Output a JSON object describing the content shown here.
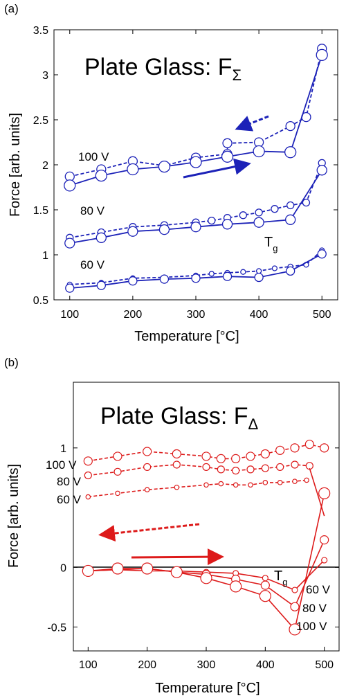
{
  "chart_data": [
    {
      "type": "line",
      "panel_label": "(a)",
      "title": "Plate Glass: F",
      "title_subscript": "Σ",
      "xlabel": "Temperature [°C]",
      "ylabel": "Force [arb. units]",
      "xlim": [
        75,
        525
      ],
      "ylim": [
        0.5,
        3.5
      ],
      "xticks": [
        "100",
        "200",
        "300",
        "400",
        "500"
      ],
      "yticks": [
        "0.5",
        "1",
        "1.5",
        "2",
        "2.5",
        "3",
        "3.5"
      ],
      "x": [
        100,
        150,
        200,
        250,
        300,
        350,
        400,
        450,
        500
      ],
      "color": "#1c22b8",
      "series": [
        {
          "name": "100 V",
          "heating": [
            1.77,
            1.88,
            1.95,
            1.98,
            2.03,
            2.09,
            2.15,
            2.14,
            3.22
          ],
          "cooling": [
            1.87,
            1.95,
            2.04,
            1.99,
            2.08,
            2.12,
            2.25,
            2.43,
            3.29
          ],
          "cooling_extra_x": [
            350,
            475
          ],
          "cooling_extra_y": [
            2.24,
            2.53
          ]
        },
        {
          "name": "80 V",
          "heating": [
            1.13,
            1.19,
            1.26,
            1.28,
            1.31,
            1.34,
            1.36,
            1.39,
            1.94
          ],
          "cooling": [
            1.19,
            1.25,
            1.31,
            1.33,
            1.36,
            1.41,
            1.47,
            1.55,
            2.02
          ],
          "cooling_extra_x": [
            325,
            375,
            425,
            475
          ],
          "cooling_extra_y": [
            1.38,
            1.44,
            1.51,
            1.58
          ]
        },
        {
          "name": "60 V",
          "heating": [
            0.63,
            0.66,
            0.71,
            0.73,
            0.74,
            0.76,
            0.75,
            0.82,
            1.01
          ],
          "cooling": [
            0.67,
            0.69,
            0.74,
            0.75,
            0.77,
            0.8,
            0.82,
            0.87,
            1.05
          ],
          "cooling_extra_x": [
            325,
            375,
            425,
            475
          ],
          "cooling_extra_y": [
            0.79,
            0.81,
            0.85,
            0.89
          ]
        }
      ],
      "annotations": [
        {
          "text": "T",
          "sub": "g",
          "x": 440,
          "y": 1.19
        }
      ]
    },
    {
      "type": "line",
      "panel_label": "(b)",
      "title": "Plate Glass: F",
      "title_subscript": "Δ",
      "xlabel": "Temperature [°C]",
      "ylabel": "Force [arb. units]",
      "xlim": [
        75,
        525
      ],
      "ylim": [
        -0.7,
        1.55
      ],
      "xticks": [
        "100",
        "200",
        "300",
        "400",
        "500"
      ],
      "yticks": [
        "-0.5",
        "0",
        "1"
      ],
      "ytick_values": [
        -0.5,
        0,
        1
      ],
      "color": "#dd1a1a",
      "dashed_series": [
        {
          "name": "100 V",
          "x": [
            100,
            150,
            200,
            250,
            300,
            325,
            350,
            375,
            400,
            425,
            450,
            475,
            500
          ],
          "y": [
            0.89,
            0.93,
            0.97,
            0.95,
            0.93,
            0.91,
            0.91,
            0.93,
            0.95,
            0.98,
            1.0,
            1.03,
            1.0
          ]
        },
        {
          "name": "80 V",
          "x": [
            100,
            150,
            200,
            250,
            300,
            325,
            350,
            375,
            400,
            425,
            450,
            475
          ],
          "y": [
            0.77,
            0.8,
            0.84,
            0.86,
            0.84,
            0.82,
            0.81,
            0.82,
            0.83,
            0.84,
            0.86,
            0.85
          ]
        },
        {
          "name": "60 V",
          "x": [
            100,
            150,
            200,
            250,
            300,
            325,
            350,
            375,
            400,
            425,
            450,
            470
          ],
          "y": [
            0.59,
            0.62,
            0.65,
            0.67,
            0.69,
            0.7,
            0.69,
            0.69,
            0.71,
            0.71,
            0.72,
            0.73
          ]
        }
      ],
      "solid_series": [
        {
          "name": "60 V",
          "x": [
            100,
            150,
            200,
            250,
            300,
            350,
            400,
            450,
            500
          ],
          "y": [
            -0.03,
            -0.02,
            -0.03,
            -0.03,
            -0.04,
            -0.05,
            -0.09,
            -0.19,
            0.06
          ]
        },
        {
          "name": "80 V",
          "x": [
            100,
            150,
            200,
            250,
            300,
            350,
            400,
            450,
            500
          ],
          "y": [
            -0.03,
            -0.02,
            -0.01,
            -0.04,
            -0.06,
            -0.1,
            -0.15,
            -0.33,
            0.23
          ]
        },
        {
          "name": "100 V",
          "x": [
            100,
            150,
            200,
            250,
            300,
            350,
            400,
            450,
            500
          ],
          "y": [
            -0.03,
            -0.01,
            -0.01,
            -0.04,
            -0.09,
            -0.16,
            -0.24,
            -0.52,
            0.62
          ]
        }
      ],
      "steep_drop": {
        "x": [
          475,
          500
        ],
        "y": [
          0.83,
          0.43
        ]
      },
      "annotations": [
        {
          "text": "T",
          "sub": "g",
          "x": 440,
          "y": 0.0
        }
      ]
    }
  ]
}
